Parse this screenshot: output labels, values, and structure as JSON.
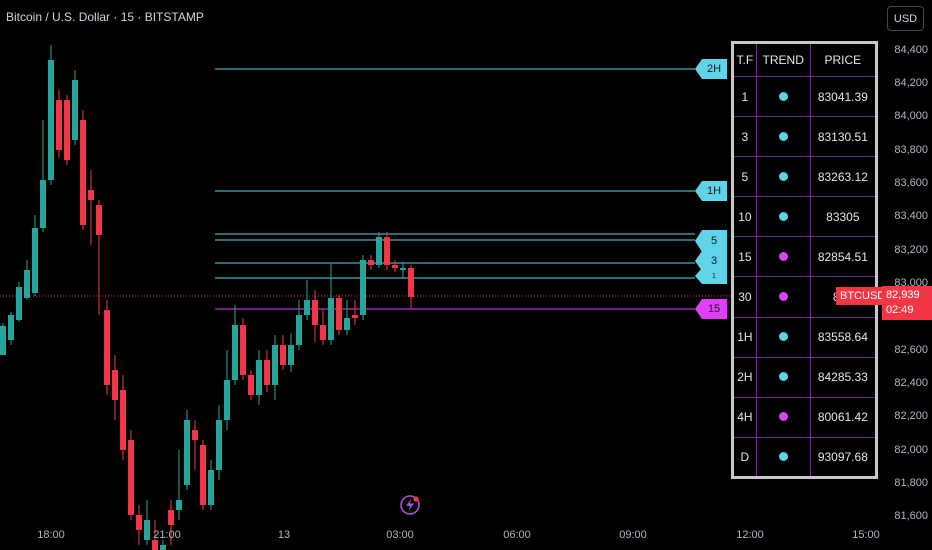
{
  "header": {
    "title": "Bitcoin / U.S. Dollar · 15 · BITSTAMP"
  },
  "currency_button": "USD",
  "price_axis": [
    "84,400",
    "84,200",
    "84,000",
    "83,800",
    "83,600",
    "83,400",
    "83,200",
    "83,000",
    "82,600",
    "82,400",
    "82,200",
    "82,000",
    "81,800",
    "81,600"
  ],
  "time_axis": [
    "18:00",
    "21:00",
    "13",
    "03:00",
    "06:00",
    "09:00",
    "12:00",
    "15:00"
  ],
  "current_price": {
    "symbol": "BTCUSD",
    "price": "82,939",
    "countdown": "02:49"
  },
  "level_tags": [
    {
      "label": "2H",
      "color": "#5fd3e8"
    },
    {
      "label": "1H",
      "color": "#5fd3e8"
    },
    {
      "label": "5",
      "color": "#5fd3e8"
    },
    {
      "label": "3",
      "color": "#5fd3e8"
    },
    {
      "label": "1",
      "color": "#5fd3e8"
    },
    {
      "label": "15",
      "color": "#e040fb"
    }
  ],
  "table": {
    "headers": [
      "T.F",
      "TREND",
      "PRICE"
    ],
    "rows": [
      {
        "tf": "1",
        "trend": "up",
        "price": "83041.39"
      },
      {
        "tf": "3",
        "trend": "up",
        "price": "83130.51"
      },
      {
        "tf": "5",
        "trend": "up",
        "price": "83263.12"
      },
      {
        "tf": "10",
        "trend": "up",
        "price": "83305"
      },
      {
        "tf": "15",
        "trend": "down",
        "price": "82854.51"
      },
      {
        "tf": "30",
        "trend": "down",
        "price": "814"
      },
      {
        "tf": "1H",
        "trend": "up",
        "price": "83558.64"
      },
      {
        "tf": "2H",
        "trend": "up",
        "price": "84285.33"
      },
      {
        "tf": "4H",
        "trend": "down",
        "price": "80061.42"
      },
      {
        "tf": "D",
        "trend": "up",
        "price": "93097.68"
      }
    ]
  },
  "colors": {
    "up": "#26a69a",
    "down": "#f23645",
    "cyan": "#5fd3e8",
    "magenta": "#e040fb",
    "table_border": "#6b2e86"
  },
  "icons": {
    "alert": "lightning-alert-icon"
  }
}
